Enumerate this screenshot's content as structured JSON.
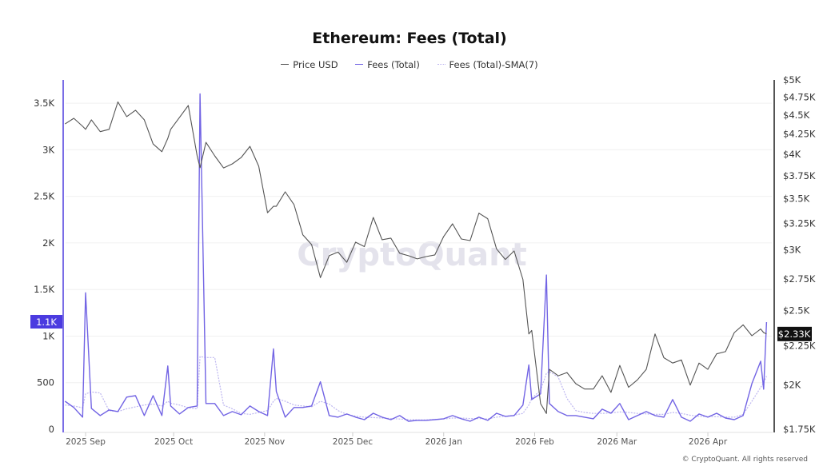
{
  "chart_data": {
    "type": "line",
    "title": "Ethereum: Fees (Total)",
    "legend": [
      "Price USD",
      "Fees (Total)",
      "Fees (Total)-SMA(7)"
    ],
    "legend_position": "top",
    "grid": true,
    "watermark": "CryptoQuant",
    "footer": "© CryptoQuant. All rights reserved",
    "colors": {
      "price": "#555555",
      "fees": "#7264e4",
      "sma": "#bdb6f0",
      "left_badge": "#4b3be0",
      "right_badge": "#111111"
    },
    "y_left": {
      "scale": "linear",
      "range": [
        0,
        3750
      ],
      "ticks": [
        0,
        500,
        1000,
        1500,
        2000,
        2500,
        3000,
        3500
      ],
      "tick_labels": [
        "0",
        "500",
        "1K",
        "1.5K",
        "2K",
        "2.5K",
        "3K",
        "3.5K"
      ],
      "current_label": "1.1K",
      "current_value": 1150
    },
    "y_right": {
      "scale": "log",
      "range": [
        1750,
        5000
      ],
      "ticks": [
        1750,
        2000,
        2250,
        2500,
        2750,
        3000,
        3250,
        3500,
        3750,
        4000,
        4250,
        4500,
        4750,
        5000
      ],
      "tick_labels": [
        "$1.75K",
        "$2K",
        "$2.25K",
        "$2.5K",
        "$2.75K",
        "$3K",
        "$3.25K",
        "$3.5K",
        "$3.75K",
        "$4K",
        "$4.25K",
        "$4.5K",
        "$4.75K",
        "$5K"
      ],
      "current_label": "$2.33K",
      "current_value": 2330
    },
    "x_axis": {
      "type": "date",
      "ticks": [
        "2025-09-01",
        "2025-10-01",
        "2025-11-01",
        "2025-12-01",
        "2026-01-01",
        "2026-02-01",
        "2026-03-01",
        "2026-04-01"
      ],
      "tick_labels": [
        "2025 Sep",
        "2025 Oct",
        "2025 Nov",
        "2025 Dec",
        "2026 Jan",
        "2026 Feb",
        "2026 Mar",
        "2026 Apr"
      ]
    },
    "x": [
      "2025-08-25",
      "2025-08-28",
      "2025-08-31",
      "2025-09-01",
      "2025-09-03",
      "2025-09-06",
      "2025-09-09",
      "2025-09-12",
      "2025-09-15",
      "2025-09-18",
      "2025-09-21",
      "2025-09-24",
      "2025-09-27",
      "2025-09-29",
      "2025-09-30",
      "2025-10-03",
      "2025-10-06",
      "2025-10-09",
      "2025-10-10",
      "2025-10-12",
      "2025-10-15",
      "2025-10-18",
      "2025-10-21",
      "2025-10-24",
      "2025-10-27",
      "2025-10-30",
      "2025-11-02",
      "2025-11-04",
      "2025-11-05",
      "2025-11-08",
      "2025-11-11",
      "2025-11-14",
      "2025-11-17",
      "2025-11-20",
      "2025-11-23",
      "2025-11-26",
      "2025-11-29",
      "2025-12-02",
      "2025-12-05",
      "2025-12-08",
      "2025-12-11",
      "2025-12-14",
      "2025-12-17",
      "2025-12-20",
      "2025-12-23",
      "2025-12-26",
      "2025-12-29",
      "2026-01-01",
      "2026-01-04",
      "2026-01-07",
      "2026-01-10",
      "2026-01-13",
      "2026-01-16",
      "2026-01-19",
      "2026-01-22",
      "2026-01-25",
      "2026-01-28",
      "2026-01-30",
      "2026-01-31",
      "2026-02-03",
      "2026-02-05",
      "2026-02-06",
      "2026-02-09",
      "2026-02-12",
      "2026-02-15",
      "2026-02-18",
      "2026-02-21",
      "2026-02-24",
      "2026-02-27",
      "2026-03-02",
      "2026-03-05",
      "2026-03-08",
      "2026-03-11",
      "2026-03-14",
      "2026-03-17",
      "2026-03-20",
      "2026-03-23",
      "2026-03-26",
      "2026-03-29",
      "2026-04-01",
      "2026-04-04",
      "2026-04-07",
      "2026-04-10",
      "2026-04-13",
      "2026-04-16",
      "2026-04-19",
      "2026-04-20",
      "2026-04-21"
    ],
    "series": [
      {
        "name": "Price USD",
        "axis": "right",
        "values": [
          4380,
          4455,
          4350,
          4310,
          4435,
          4280,
          4310,
          4680,
          4478,
          4565,
          4435,
          4125,
          4030,
          4195,
          4310,
          4467,
          4630,
          3980,
          3840,
          4145,
          3980,
          3838,
          3885,
          3960,
          4095,
          3857,
          3355,
          3420,
          3420,
          3572,
          3437,
          3140,
          3048,
          2760,
          2948,
          2980,
          2890,
          3070,
          3030,
          3308,
          3093,
          3108,
          2970,
          2948,
          2920,
          2940,
          2955,
          3123,
          3245,
          3100,
          3085,
          3350,
          3295,
          3010,
          2915,
          2990,
          2745,
          2330,
          2355,
          1890,
          1835,
          2095,
          2055,
          2075,
          2007,
          1975,
          1975,
          2055,
          1955,
          2120,
          1985,
          2030,
          2095,
          2330,
          2170,
          2135,
          2155,
          1998,
          2135,
          2095,
          2195,
          2210,
          2340,
          2395,
          2318,
          2365,
          2340,
          2330
        ]
      },
      {
        "name": "Fees (Total)",
        "axis": "left",
        "values": [
          300,
          233,
          130,
          1465,
          224,
          147,
          207,
          190,
          345,
          360,
          147,
          360,
          147,
          680,
          250,
          164,
          233,
          250,
          3600,
          276,
          276,
          147,
          190,
          155,
          250,
          190,
          147,
          862,
          405,
          130,
          233,
          233,
          250,
          510,
          147,
          130,
          164,
          130,
          103,
          172,
          130,
          103,
          147,
          86,
          95,
          95,
          103,
          112,
          147,
          112,
          86,
          130,
          95,
          172,
          138,
          147,
          259,
          690,
          319,
          380,
          1655,
          276,
          190,
          147,
          147,
          130,
          112,
          215,
          172,
          276,
          103,
          147,
          190,
          147,
          130,
          319,
          130,
          86,
          164,
          130,
          172,
          120,
          103,
          147,
          490,
          730,
          430,
          1150
        ]
      },
      {
        "name": "Fees (Total)-SMA(7)",
        "axis": "left",
        "values": [
          260,
          250,
          230,
          380,
          400,
          390,
          200,
          190,
          220,
          240,
          260,
          270,
          250,
          300,
          280,
          260,
          230,
          220,
          780,
          770,
          770,
          260,
          220,
          170,
          160,
          180,
          200,
          300,
          330,
          300,
          260,
          250,
          240,
          300,
          270,
          200,
          160,
          140,
          130,
          125,
          120,
          115,
          110,
          105,
          100,
          100,
          105,
          110,
          120,
          120,
          115,
          115,
          110,
          130,
          140,
          150,
          170,
          260,
          330,
          420,
          600,
          620,
          560,
          330,
          200,
          180,
          170,
          170,
          175,
          185,
          180,
          170,
          165,
          160,
          160,
          180,
          170,
          150,
          140,
          135,
          135,
          130,
          130,
          160,
          300,
          450,
          500,
          570
        ]
      }
    ]
  }
}
